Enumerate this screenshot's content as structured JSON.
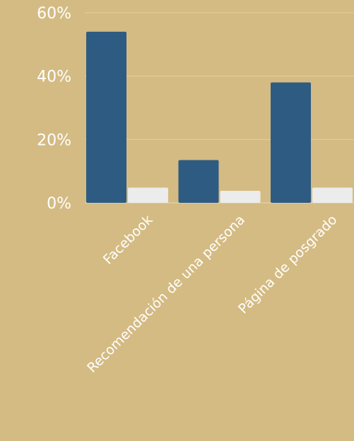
{
  "chart_data": {
    "type": "bar",
    "categories": [
      "Facebook",
      "Recomendación de una persona",
      "Página de posgrado"
    ],
    "series": [
      {
        "values": [
          54,
          13.5,
          38
        ]
      },
      {
        "values": [
          4.8,
          3.8,
          4.8
        ]
      }
    ],
    "colors": [
      "#2e5b82",
      "#ececec"
    ],
    "yticks": [
      "0%",
      "20%",
      "40%",
      "60%"
    ],
    "ylim": [
      0,
      60
    ],
    "grid": true,
    "legend": "none"
  }
}
